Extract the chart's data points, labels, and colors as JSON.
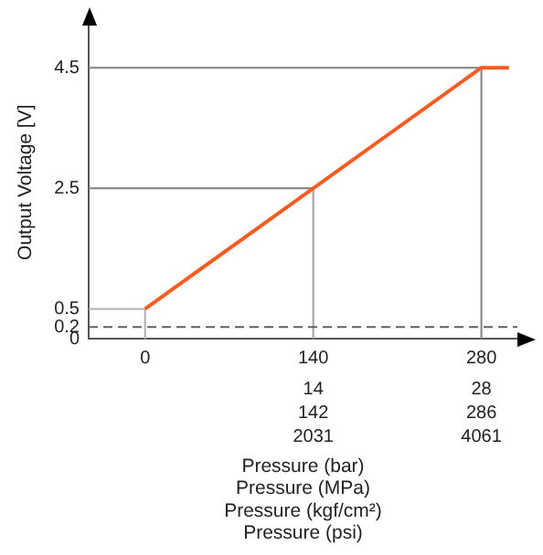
{
  "chart_data": {
    "type": "line",
    "xlabel": "Pressure (bar)",
    "x2label": "Pressure (MPa)",
    "annotations": [
      "142",
      "286",
      "2031",
      "4061",
      "Pressure (kgf/cm²)",
      "Pressure (psi)"
    ],
    "ylabel": "Output Voltage [V]",
    "series": [
      {
        "color": "#ff5a1e",
        "x": [
          0,
          280,
          303
        ],
        "values": [
          0.5,
          4.5,
          4.5
        ]
      }
    ],
    "xlim": [
      -47,
      310
    ],
    "xticks": [
      0,
      140,
      280
    ],
    "x2lim": [
      -4.7,
      31
    ],
    "x2ticks": [
      14,
      28
    ],
    "ylim": [
      0,
      5.2
    ],
    "yticks": [
      0,
      0.2,
      0.5,
      2.5,
      4.5
    ],
    "ref_lines": [
      {
        "axis": "y",
        "value": 0.5,
        "color": "#b0b0b0"
      },
      {
        "axis": "y",
        "value": 2.5,
        "color": "#808080"
      },
      {
        "axis": "y",
        "value": 4.5,
        "color": "#808080"
      },
      {
        "axis": "x",
        "value": 0,
        "color": "#b0b0b0"
      },
      {
        "axis": "x",
        "value": 140,
        "color": "#a0a0a0"
      },
      {
        "axis": "x",
        "value": 280,
        "color": "#808080"
      },
      {
        "axis": "y",
        "value": 0.2,
        "color": "#606060",
        "line_style": "dashed"
      }
    ],
    "grid": false,
    "legend": false,
    "marker": "none",
    "line_style": "solid"
  }
}
